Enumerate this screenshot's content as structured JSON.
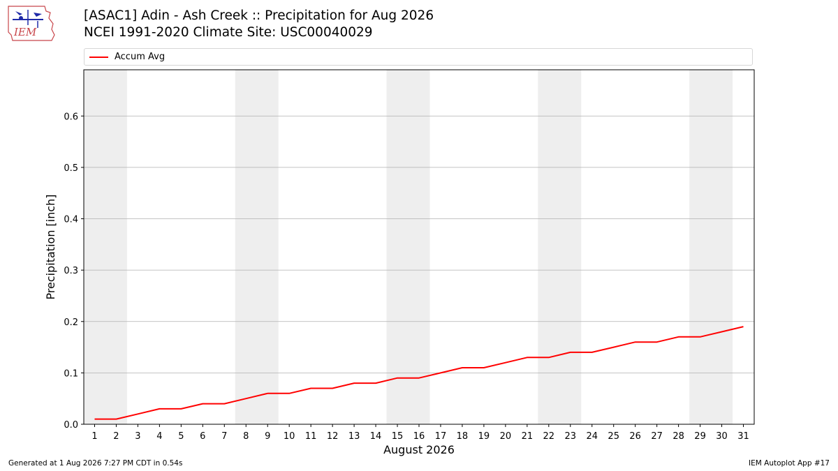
{
  "header": {
    "logo_text": "IEM",
    "title_line1": "[ASAC1] Adin - Ash Creek :: Precipitation for Aug 2026",
    "title_line2": "NCEI 1991-2020 Climate Site: USC00040029"
  },
  "legend": {
    "entries": [
      "Accum Avg"
    ]
  },
  "footer": {
    "left": "Generated at 1 Aug 2026 7:27 PM CDT in 0.54s",
    "right": "IEM Autoplot App #17"
  },
  "colors": {
    "series": "#ff0000",
    "weekend_shade": "#eeeeee",
    "grid": "#b0b0b0"
  },
  "chart_data": {
    "type": "line",
    "xlabel": "August 2026",
    "ylabel": "Precipitation [inch]",
    "xlim": [
      0.5,
      31.5
    ],
    "ylim": [
      0,
      0.69
    ],
    "yticks": [
      0.0,
      0.1,
      0.2,
      0.3,
      0.4,
      0.5,
      0.6
    ],
    "ytick_labels": [
      "0.0",
      "0.1",
      "0.2",
      "0.3",
      "0.4",
      "0.5",
      "0.6"
    ],
    "xticks": [
      1,
      2,
      3,
      4,
      5,
      6,
      7,
      8,
      9,
      10,
      11,
      12,
      13,
      14,
      15,
      16,
      17,
      18,
      19,
      20,
      21,
      22,
      23,
      24,
      25,
      26,
      27,
      28,
      29,
      30,
      31
    ],
    "grid": "horizontal",
    "shaded_day_ranges": [
      [
        1,
        2
      ],
      [
        8,
        9
      ],
      [
        15,
        16
      ],
      [
        22,
        23
      ],
      [
        29,
        30
      ]
    ],
    "series": [
      {
        "name": "Accum Avg",
        "x": [
          1,
          2,
          3,
          4,
          5,
          6,
          7,
          8,
          9,
          10,
          11,
          12,
          13,
          14,
          15,
          16,
          17,
          18,
          19,
          20,
          21,
          22,
          23,
          24,
          25,
          26,
          27,
          28,
          29,
          30,
          31
        ],
        "values": [
          0.01,
          0.01,
          0.02,
          0.03,
          0.03,
          0.04,
          0.04,
          0.05,
          0.06,
          0.06,
          0.07,
          0.07,
          0.08,
          0.08,
          0.09,
          0.09,
          0.1,
          0.11,
          0.11,
          0.12,
          0.13,
          0.13,
          0.14,
          0.14,
          0.15,
          0.16,
          0.16,
          0.17,
          0.17,
          0.18,
          0.19
        ]
      }
    ]
  }
}
